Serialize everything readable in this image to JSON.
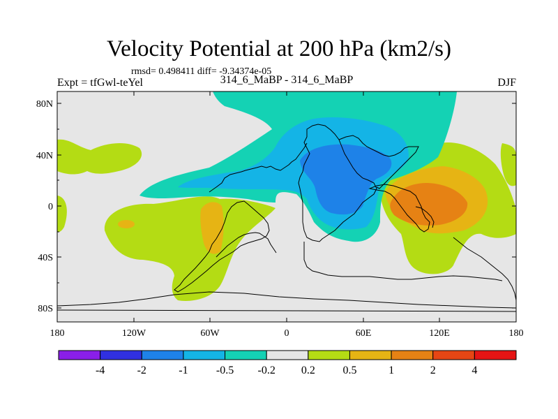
{
  "title": "Velocity Potential at 200 hPa (km2/s)",
  "stats": "rmsd= 0.498411  diff= -9.34374e-05",
  "left_label": "Expt = tfGwl-teYel",
  "center_label": "314_6_MaBP - 314_6_MaBP",
  "right_label": "DJF",
  "lat_ticks": [
    "80N",
    "40N",
    "0",
    "40S",
    "80S"
  ],
  "lon_ticks": [
    "180",
    "120W",
    "60W",
    "0",
    "60E",
    "120E",
    "180"
  ],
  "colorbar": {
    "colors": [
      "#8a1fe8",
      "#3030e0",
      "#1e82e8",
      "#14b4e6",
      "#14d2b4",
      "#e6e6e6",
      "#b4dc14",
      "#e6b414",
      "#e68214",
      "#e64614",
      "#e61414"
    ],
    "labels": [
      "-4",
      "-2",
      "-1",
      "-0.5",
      "-0.2",
      "0.2",
      "0.5",
      "1",
      "2",
      "4"
    ]
  },
  "palette": {
    "background": "#e6e6e6",
    "neg_02": "#14d2b4",
    "neg_05": "#14b4e6",
    "neg_1": "#1e82e8",
    "pos_02": "#b4dc14",
    "pos_05": "#e6b414",
    "pos_1": "#e68214"
  }
}
